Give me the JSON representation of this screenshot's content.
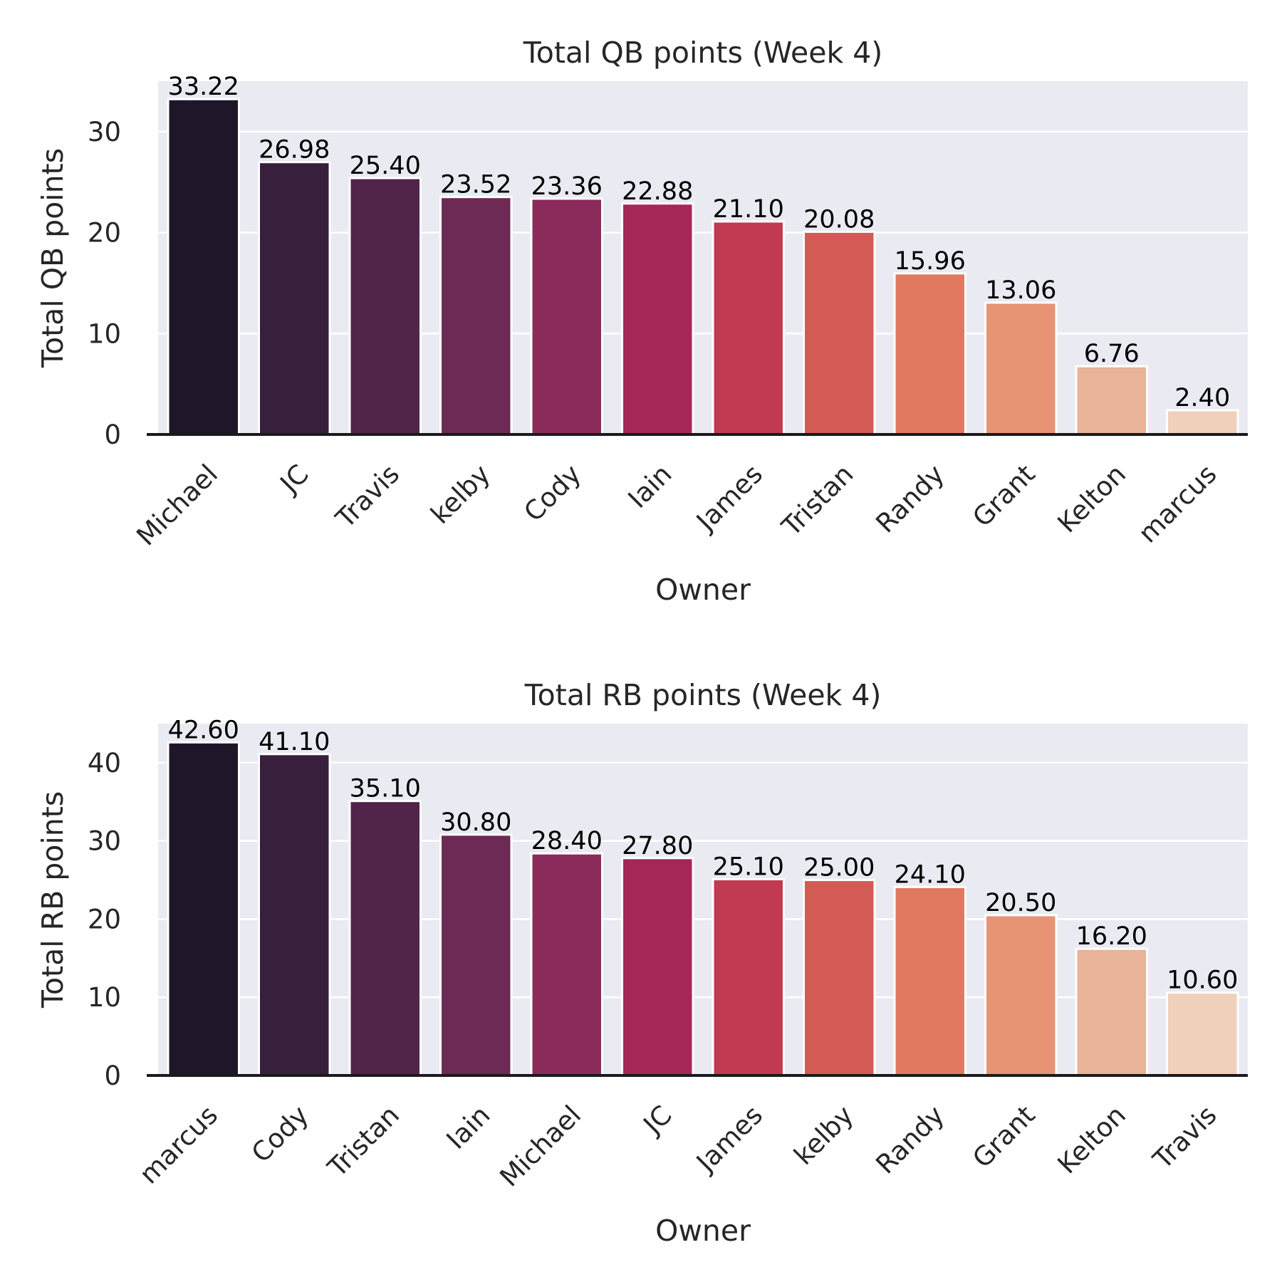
{
  "colors": {
    "background": "#ffffff",
    "plot_background": "#eaeaf2",
    "grid": "#ffffff",
    "axis_line": "#1a1a1a",
    "text": "#262626",
    "bar_palette": [
      "#1f1629",
      "#381f3b",
      "#51244a",
      "#6c2a54",
      "#8a2b5b",
      "#a52758",
      "#c13a51",
      "#d35b55",
      "#df7a60",
      "#e69474",
      "#e8b399",
      "#f0cfbb"
    ]
  },
  "chart_data": [
    {
      "type": "bar",
      "title": "Total QB points (Week 4)",
      "xlabel": "Owner",
      "ylabel": "Total QB points",
      "categories": [
        "Michael",
        "JC",
        "Travis",
        "kelby",
        "Cody",
        "Iain",
        "James",
        "Tristan",
        "Randy",
        "Grant",
        "Kelton",
        "marcus"
      ],
      "values": [
        33.22,
        26.98,
        25.4,
        23.52,
        23.36,
        22.88,
        21.1,
        20.08,
        15.96,
        13.06,
        6.76,
        2.4
      ],
      "value_labels": [
        "33.22",
        "26.98",
        "25.40",
        "23.52",
        "23.36",
        "22.88",
        "21.10",
        "20.08",
        "15.96",
        "13.06",
        "6.76",
        "2.40"
      ],
      "yticks": [
        "0",
        "10",
        "20",
        "30"
      ],
      "ylim": [
        0,
        35
      ],
      "grid": true,
      "legend": "none"
    },
    {
      "type": "bar",
      "title": "Total RB points (Week 4)",
      "xlabel": "Owner",
      "ylabel": "Total RB points",
      "categories": [
        "marcus",
        "Cody",
        "Tristan",
        "Iain",
        "Michael",
        "JC",
        "James",
        "kelby",
        "Randy",
        "Grant",
        "Kelton",
        "Travis"
      ],
      "values": [
        42.6,
        41.1,
        35.1,
        30.8,
        28.4,
        27.8,
        25.1,
        25.0,
        24.1,
        20.5,
        16.2,
        10.6
      ],
      "value_labels": [
        "42.60",
        "41.10",
        "35.10",
        "30.80",
        "28.40",
        "27.80",
        "25.10",
        "25.00",
        "24.10",
        "20.50",
        "16.20",
        "10.60"
      ],
      "yticks": [
        "0",
        "10",
        "20",
        "30",
        "40"
      ],
      "ylim": [
        0,
        45
      ],
      "grid": true,
      "legend": "none"
    }
  ]
}
